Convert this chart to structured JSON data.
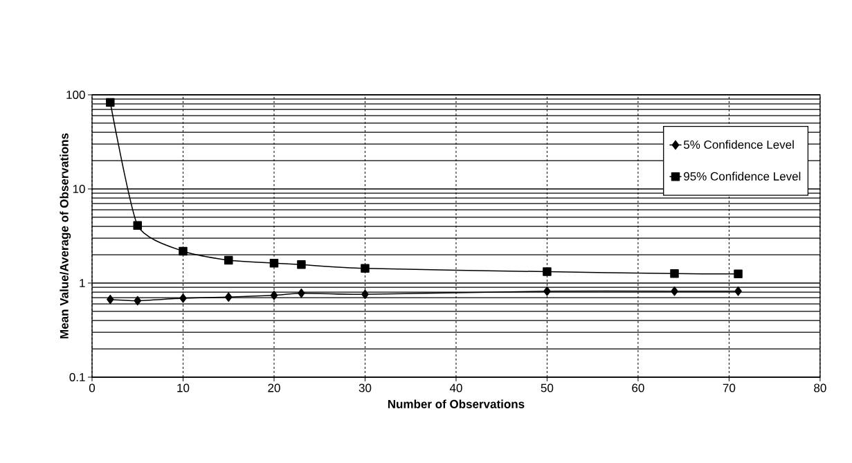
{
  "chart_data": {
    "type": "line",
    "xlabel": "Number of Observations",
    "ylabel": "Mean Value/Average of Observations",
    "x": [
      2,
      5,
      10,
      15,
      20,
      23,
      30,
      50,
      64,
      71
    ],
    "series": [
      {
        "name": "5% Confidence Level",
        "color": "#000000",
        "marker": "diamond",
        "values": [
          0.67,
          0.65,
          0.69,
          0.71,
          0.74,
          0.78,
          0.76,
          0.82,
          0.82,
          0.82
        ]
      },
      {
        "name": "95% Confidence Level",
        "color": "#000000",
        "marker": "square",
        "values": [
          83,
          4.1,
          2.18,
          1.75,
          1.63,
          1.57,
          1.43,
          1.32,
          1.26,
          1.25
        ]
      }
    ],
    "xlim": [
      0,
      80
    ],
    "xticks": [
      0,
      10,
      20,
      30,
      40,
      50,
      60,
      70,
      80
    ],
    "ylim": [
      0.1,
      100
    ],
    "yticks": [
      0.1,
      1,
      10,
      100
    ],
    "log": "y",
    "grid": true,
    "legend": "top right",
    "line_style": "solid"
  }
}
